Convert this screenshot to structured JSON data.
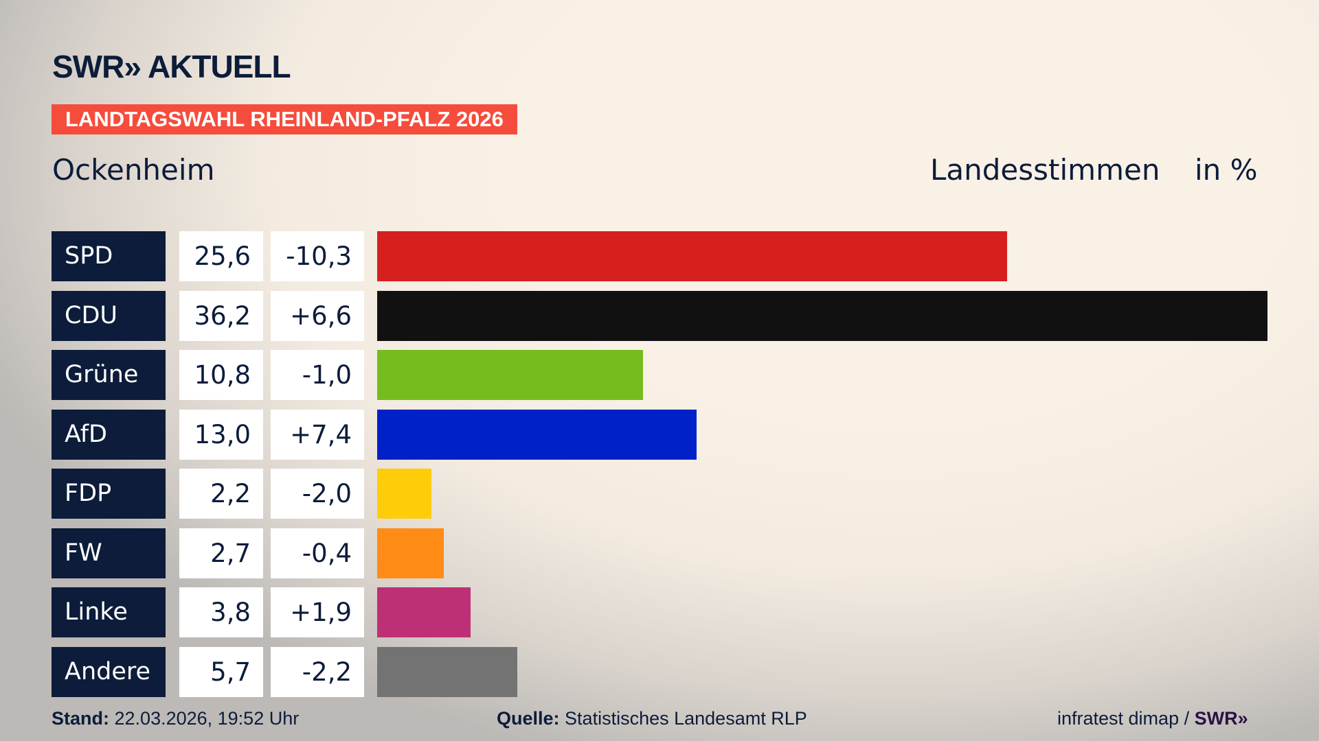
{
  "header": {
    "logo": "SWR» AKTUELL",
    "banner": "LANDTAGSWAHL RHEINLAND-PFALZ 2026",
    "location": "Ockenheim",
    "vote_type": "Landesstimmen",
    "unit": "in %"
  },
  "chart_data": {
    "type": "bar",
    "orientation": "horizontal",
    "xlim": [
      0,
      36.2
    ],
    "categories": [
      "SPD",
      "CDU",
      "Grüne",
      "AfD",
      "FDP",
      "FW",
      "Linke",
      "Andere"
    ],
    "values": [
      25.6,
      36.2,
      10.8,
      13.0,
      2.2,
      2.7,
      3.8,
      5.7
    ],
    "value_labels": [
      "25,6",
      "36,2",
      "10,8",
      "13,0",
      "2,2",
      "2,7",
      "3,8",
      "5,7"
    ],
    "diff_labels": [
      "-10,3",
      "+6,6",
      "-1,0",
      "+7,4",
      "-2,0",
      "-0,4",
      "+1,9",
      "-2,2"
    ],
    "colors": [
      "#d81f20",
      "#111111",
      "#77bc1f",
      "#0021c8",
      "#ffcc0a",
      "#ff8c17",
      "#bd3075",
      "#737373"
    ]
  },
  "footer": {
    "stand_label": "Stand:",
    "stand_value": "22.03.2026, 19:52 Uhr",
    "source_label": "Quelle:",
    "source_value": "Statistisches Landesamt RLP",
    "credit": "infratest dimap /",
    "credit_logo": "SWR»"
  }
}
